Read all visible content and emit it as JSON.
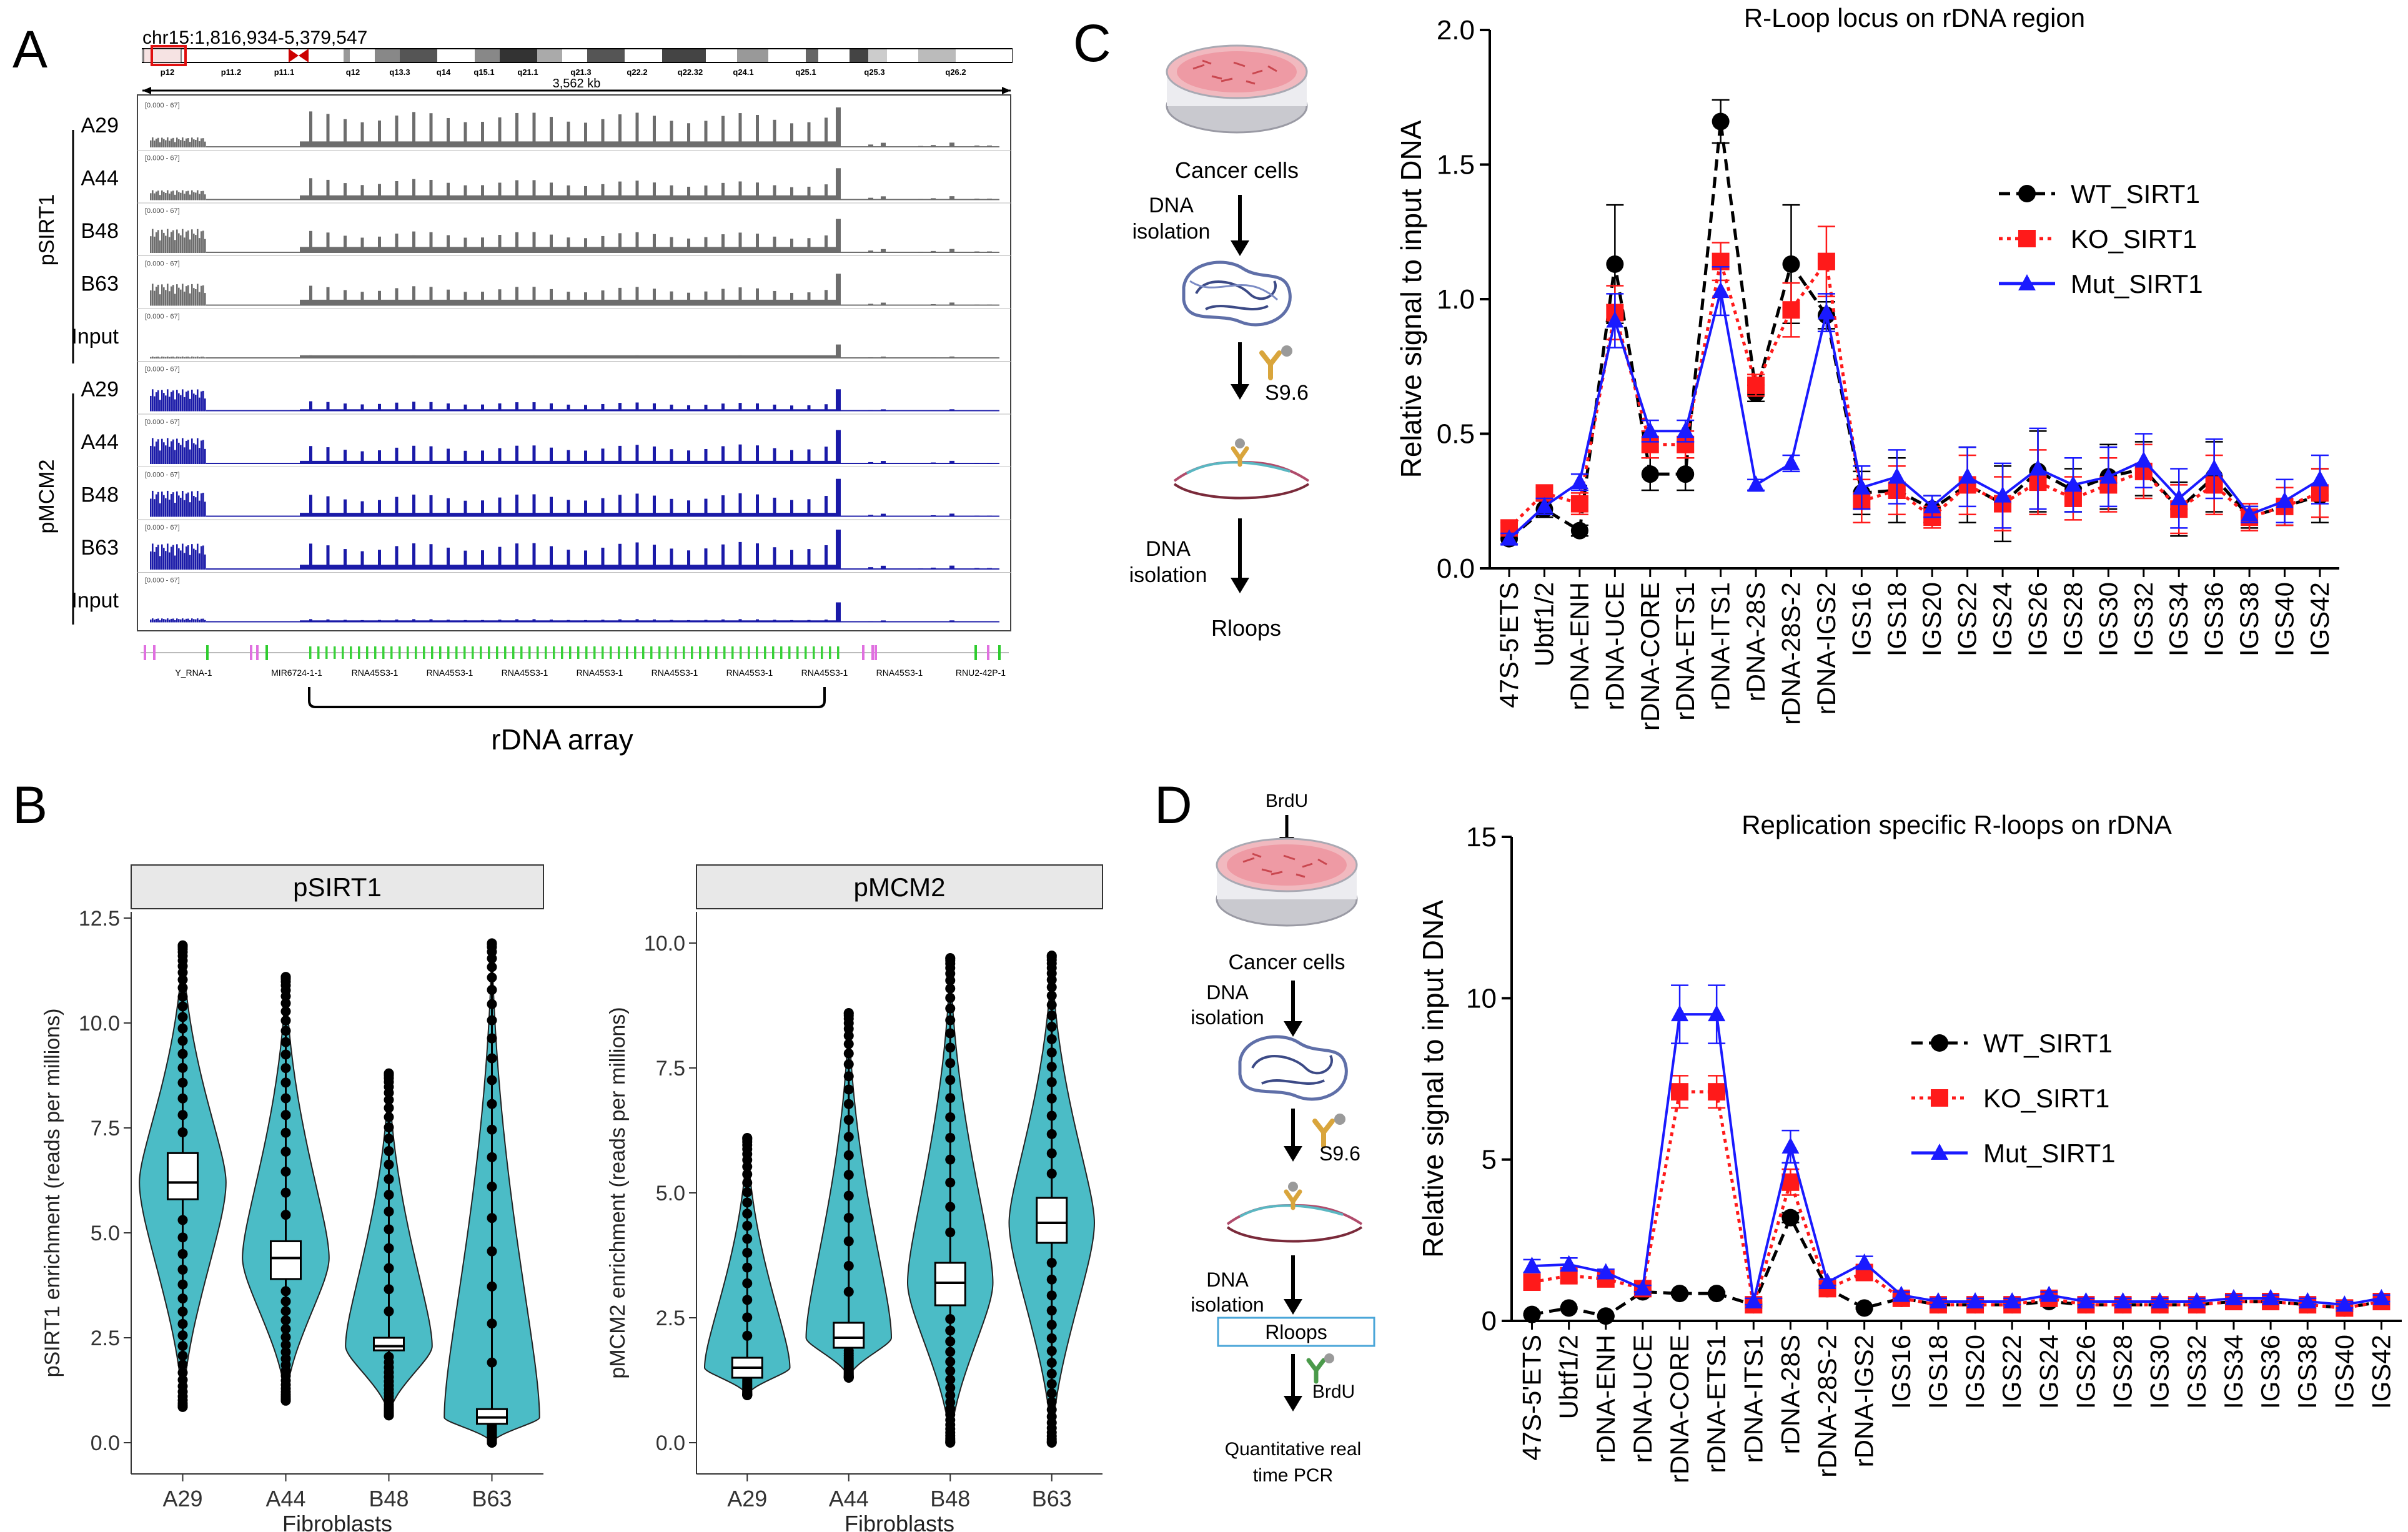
{
  "panel_labels": {
    "a": "A",
    "b": "B",
    "c": "C",
    "d": "D"
  },
  "panel_a": {
    "locus": "chr15:1,816,934-5,379,547",
    "scale_label": "3,562 kb",
    "range_label": "[0.000 - 67]",
    "ideogram_bands": [
      "p12",
      "p11.2",
      "p11.1",
      "q12",
      "q13.3",
      "q14",
      "q15.1",
      "q21.1",
      "q21.3",
      "q22.2",
      "q22.32",
      "q24.1",
      "q25.1",
      "q25.3",
      "q26.2"
    ],
    "group1": "pSIRT1",
    "group2": "pMCM2",
    "tracks": [
      "A29",
      "A44",
      "B48",
      "B63",
      "Input",
      "A29",
      "A44",
      "B48",
      "B63",
      "Input"
    ],
    "genes": [
      "Y_RNA-1",
      "MIR6724-1-1",
      "RNA45S3-1",
      "RNA45S3-1",
      "RNA45S3-1",
      "RNA45S3-1",
      "RNA45S3-1",
      "RNA45S3-1",
      "RNA45S3-1",
      "RNA45S3-1",
      "RNU2-42P-1"
    ],
    "array_label": "rDNA array",
    "colors": {
      "grey": "#6d6d6d",
      "blue": "#1a1aa8"
    }
  },
  "panel_b": {
    "chart_data": [
      {
        "type": "violin",
        "strip": "pSIRT1",
        "categories": [
          "A29",
          "A44",
          "B48",
          "B63"
        ],
        "xlabel": "Fibroblasts",
        "ylabel": "pSIRT1 enrichment (reads per millions)",
        "ylim": [
          0,
          12.5
        ],
        "yticks": [
          "0.0",
          "2.5",
          "5.0",
          "7.5",
          "10.0",
          "12.5"
        ],
        "median": [
          6.2,
          4.4,
          2.3,
          0.6
        ],
        "q1": [
          5.8,
          3.9,
          2.2,
          0.45
        ],
        "q3": [
          6.9,
          4.8,
          2.5,
          0.8
        ],
        "min": [
          0.85,
          1.0,
          0.65,
          0.0
        ],
        "max": [
          11.85,
          11.1,
          8.8,
          11.9
        ]
      },
      {
        "type": "violin",
        "strip": "pMCM2",
        "categories": [
          "A29",
          "A44",
          "B48",
          "B63"
        ],
        "xlabel": "Fibroblasts",
        "ylabel": "pMCM2 enrichment (reads per millions)",
        "ylim": [
          0,
          10.5
        ],
        "yticks": [
          "0.0",
          "2.5",
          "5.0",
          "7.5",
          "10.0"
        ],
        "median": [
          1.5,
          2.1,
          3.2,
          4.4
        ],
        "q1": [
          1.3,
          1.9,
          2.75,
          4.0
        ],
        "q3": [
          1.7,
          2.4,
          3.6,
          4.9
        ],
        "min": [
          0.95,
          1.3,
          0.0,
          0.0
        ],
        "max": [
          6.1,
          8.6,
          9.7,
          9.75
        ]
      }
    ],
    "fill_color": "#4bbcc6"
  },
  "workflow_c": {
    "cells": "Cancer cells",
    "dna1": [
      "DNA",
      "isolation"
    ],
    "antibody": "S9.6",
    "dna2": [
      "DNA",
      "isolation"
    ],
    "result": "Rloops"
  },
  "workflow_d": {
    "brdu_top": "BrdU",
    "cells": "Cancer cells",
    "dna1": [
      "DNA",
      "isolation"
    ],
    "antibody": "S9.6",
    "dna2": [
      "DNA",
      "isolation"
    ],
    "rloops": "Rloops",
    "brdu_bottom": "BrdU",
    "result": [
      "Quantitative real",
      "time PCR"
    ]
  },
  "chart_c": {
    "chart_data": {
      "type": "line",
      "title": "R-Loop locus on rDNA region",
      "ylabel": "Relative signal to input DNA",
      "ylim": [
        0,
        2.0
      ],
      "yticks": [
        "0.0",
        "0.5",
        "1.0",
        "1.5",
        "2.0"
      ],
      "categories": [
        "47S-5'ETS",
        "Ubtf1/2",
        "rDNA-ENH",
        "rDNA-UCE",
        "rDNA-CORE",
        "rDNA-ETS1",
        "rDNA-ITS1",
        "rDNA-28S",
        "rDNA-28S-2",
        "rDNA-IGS2",
        "IGS16",
        "IGS18",
        "IGS20",
        "IGS22",
        "IGS24",
        "IGS26",
        "IGS28",
        "IGS30",
        "IGS32",
        "IGS34",
        "IGS36",
        "IGS38",
        "IGS40",
        "IGS42"
      ],
      "x_positions": [
        0,
        1,
        2,
        3,
        4,
        5,
        6,
        7,
        8,
        9,
        10,
        11,
        12,
        13,
        14,
        15,
        16,
        17,
        18,
        19,
        20,
        21,
        22,
        23
      ],
      "x_range": [
        -0.55,
        23.55
      ],
      "series": [
        {
          "name": "WT_SIRT1",
          "color": "#000000",
          "dash": "18,10",
          "marker": "circle",
          "values": [
            0.11,
            0.22,
            0.14,
            1.13,
            0.35,
            0.35,
            1.66,
            0.65,
            1.13,
            0.94,
            0.28,
            0.29,
            0.22,
            0.31,
            0.24,
            0.36,
            0.29,
            0.34,
            0.37,
            0.22,
            0.34,
            0.19,
            0.23,
            0.27
          ],
          "errors": [
            0.02,
            0.03,
            0.02,
            0.22,
            0.06,
            0.06,
            0.08,
            0.03,
            0.22,
            0.05,
            0.08,
            0.12,
            0.05,
            0.14,
            0.14,
            0.15,
            0.08,
            0.12,
            0.1,
            0.1,
            0.13,
            0.04,
            0.07,
            0.1
          ]
        },
        {
          "name": "KO_SIRT1",
          "color": "#ff1a1a",
          "dash": "6,7",
          "marker": "square",
          "values": [
            0.15,
            0.28,
            0.24,
            0.95,
            0.46,
            0.46,
            1.14,
            0.68,
            0.96,
            1.14,
            0.25,
            0.29,
            0.19,
            0.31,
            0.24,
            0.32,
            0.26,
            0.31,
            0.36,
            0.22,
            0.31,
            0.19,
            0.23,
            0.28
          ],
          "errors": [
            0.02,
            0.02,
            0.04,
            0.1,
            0.05,
            0.05,
            0.07,
            0.04,
            0.1,
            0.13,
            0.08,
            0.09,
            0.04,
            0.11,
            0.1,
            0.12,
            0.08,
            0.1,
            0.1,
            0.09,
            0.11,
            0.05,
            0.07,
            0.09
          ]
        },
        {
          "name": "Mut_SIRT1",
          "color": "#1a1aff",
          "dash": "",
          "marker": "triangle",
          "values": [
            0.11,
            0.23,
            0.32,
            0.92,
            0.51,
            0.51,
            1.03,
            0.31,
            0.39,
            0.95,
            0.3,
            0.34,
            0.23,
            0.34,
            0.27,
            0.37,
            0.31,
            0.34,
            0.4,
            0.26,
            0.37,
            0.2,
            0.25,
            0.33
          ],
          "errors": [
            0.02,
            0.03,
            0.03,
            0.1,
            0.04,
            0.04,
            0.09,
            0.02,
            0.03,
            0.07,
            0.08,
            0.1,
            0.04,
            0.11,
            0.12,
            0.15,
            0.1,
            0.11,
            0.1,
            0.11,
            0.11,
            0.03,
            0.08,
            0.09
          ]
        }
      ]
    }
  },
  "chart_d": {
    "chart_data": {
      "type": "line",
      "title": "Replication specific R-loops on rDNA",
      "ylabel": "Relative signal to input DNA",
      "ylim": [
        0,
        15
      ],
      "yticks": [
        "0",
        "5",
        "10",
        "15"
      ],
      "categories": [
        "47S-5'ETS",
        "Ubtf1/2",
        "rDNA-ENH",
        "rDNA-UCE",
        "rDNA-CORE",
        "rDNA-ETS1",
        "rDNA-ITS1",
        "rDNA-28S",
        "rDNA-28S-2",
        "rDNA-IGS2",
        "IGS16",
        "IGS18",
        "IGS20",
        "IGS22",
        "IGS24",
        "IGS26",
        "IGS28",
        "IGS30",
        "IGS32",
        "IGS34",
        "IGS36",
        "IGS38",
        "IGS40",
        "IGS42"
      ],
      "x_positions": [
        0,
        1,
        2,
        3,
        4,
        5,
        6,
        7,
        8,
        9,
        10,
        11,
        12,
        13,
        14,
        15,
        16,
        17,
        18,
        19,
        20,
        21,
        22,
        23
      ],
      "x_range": [
        -0.55,
        23.55
      ],
      "series": [
        {
          "name": "WT_SIRT1",
          "color": "#000000",
          "dash": "18,10",
          "marker": "circle",
          "values": [
            0.2,
            0.4,
            0.15,
            0.9,
            0.85,
            0.85,
            0.5,
            3.2,
            1.0,
            0.4,
            0.7,
            0.5,
            0.5,
            0.5,
            0.6,
            0.5,
            0.5,
            0.5,
            0.5,
            0.6,
            0.6,
            0.5,
            0.4,
            0.6
          ],
          "errors": [
            0.02,
            0.03,
            0.02,
            0.05,
            0.05,
            0.05,
            0.05,
            0.15,
            0.05,
            0.03,
            0.05,
            0.05,
            0.05,
            0.05,
            0.05,
            0.05,
            0.05,
            0.05,
            0.05,
            0.05,
            0.05,
            0.05,
            0.05,
            0.05
          ]
        },
        {
          "name": "KO_SIRT1",
          "color": "#ff1a1a",
          "dash": "6,7",
          "marker": "square",
          "values": [
            1.2,
            1.4,
            1.3,
            1.0,
            7.1,
            7.1,
            0.5,
            4.3,
            1.0,
            1.5,
            0.7,
            0.5,
            0.5,
            0.5,
            0.7,
            0.5,
            0.5,
            0.5,
            0.5,
            0.6,
            0.6,
            0.5,
            0.4,
            0.6
          ],
          "errors": [
            0.2,
            0.2,
            0.1,
            0.1,
            0.5,
            0.5,
            0.1,
            0.4,
            0.1,
            0.2,
            0.1,
            0.1,
            0.1,
            0.1,
            0.1,
            0.1,
            0.1,
            0.1,
            0.1,
            0.1,
            0.1,
            0.1,
            0.1,
            0.1
          ]
        },
        {
          "name": "Mut_SIRT1",
          "color": "#1a1aff",
          "dash": "",
          "marker": "triangle",
          "values": [
            1.7,
            1.75,
            1.5,
            1.0,
            9.5,
            9.5,
            0.6,
            5.4,
            1.2,
            1.8,
            0.8,
            0.6,
            0.6,
            0.6,
            0.8,
            0.6,
            0.6,
            0.6,
            0.6,
            0.7,
            0.7,
            0.6,
            0.5,
            0.7
          ],
          "errors": [
            0.2,
            0.2,
            0.1,
            0.1,
            0.9,
            0.9,
            0.1,
            0.5,
            0.1,
            0.2,
            0.1,
            0.1,
            0.1,
            0.1,
            0.1,
            0.1,
            0.1,
            0.1,
            0.1,
            0.1,
            0.1,
            0.1,
            0.1,
            0.1
          ]
        }
      ]
    }
  }
}
